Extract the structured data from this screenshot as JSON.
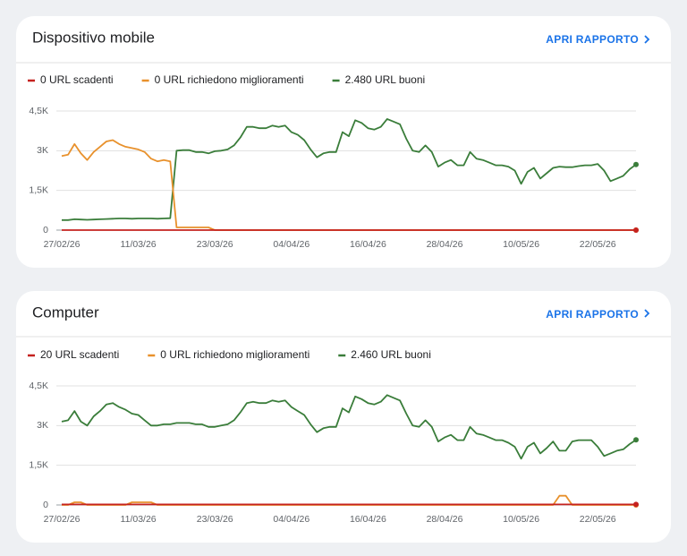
{
  "chart_data": [
    {
      "type": "line",
      "title": "Dispositivo mobile",
      "action": "APRI RAPPORTO",
      "categories": [
        "27/02/26",
        null,
        null,
        null,
        null,
        null,
        null,
        null,
        null,
        null,
        null,
        null,
        "11/03/26",
        null,
        null,
        null,
        null,
        null,
        null,
        null,
        null,
        null,
        null,
        null,
        "23/03/26",
        null,
        null,
        null,
        null,
        null,
        null,
        null,
        null,
        null,
        null,
        null,
        "04/04/26",
        null,
        null,
        null,
        null,
        null,
        null,
        null,
        null,
        null,
        null,
        null,
        "16/04/26",
        null,
        null,
        null,
        null,
        null,
        null,
        null,
        null,
        null,
        null,
        null,
        "28/04/26",
        null,
        null,
        null,
        null,
        null,
        null,
        null,
        null,
        null,
        null,
        null,
        "10/05/26",
        null,
        null,
        null,
        null,
        null,
        null,
        null,
        null,
        null,
        null,
        null,
        "22/05/26",
        null,
        null,
        null,
        null,
        null,
        null
      ],
      "series": [
        {
          "name": "0 URL scadenti",
          "color": "#c5221f",
          "values": [
            0,
            0,
            0,
            0,
            0,
            0,
            0,
            0,
            0,
            0,
            0,
            0,
            0,
            0,
            0,
            0,
            0,
            0,
            0,
            0,
            0,
            0,
            0,
            0,
            0,
            0,
            0,
            0,
            0,
            0,
            0,
            0,
            0,
            0,
            0,
            0,
            0,
            0,
            0,
            0,
            0,
            0,
            0,
            0,
            0,
            0,
            0,
            0,
            0,
            0,
            0,
            0,
            0,
            0,
            0,
            0,
            0,
            0,
            0,
            0,
            0,
            0,
            0,
            0,
            0,
            0,
            0,
            0,
            0,
            0,
            0,
            0,
            0,
            0,
            0,
            0,
            0,
            0,
            0,
            0,
            0,
            0,
            0,
            0,
            0,
            0,
            0,
            0,
            0,
            0,
            0
          ]
        },
        {
          "name": "0 URL richiedono miglioramenti",
          "color": "#e8912c",
          "values": [
            2800,
            2850,
            3250,
            2900,
            2650,
            2950,
            3150,
            3350,
            3400,
            3250,
            3150,
            3100,
            3050,
            2950,
            2700,
            2600,
            2650,
            2600,
            100,
            100,
            100,
            100,
            100,
            100,
            0,
            0,
            0,
            0,
            0,
            0,
            0,
            0,
            0,
            0,
            0,
            0,
            0,
            0,
            0,
            0,
            0,
            0,
            0,
            0,
            0,
            0,
            0,
            0,
            0,
            0,
            0,
            0,
            0,
            0,
            0,
            0,
            0,
            0,
            0,
            0,
            0,
            0,
            0,
            0,
            0,
            0,
            0,
            0,
            0,
            0,
            0,
            0,
            0,
            0,
            0,
            0,
            0,
            0,
            0,
            0,
            0,
            0,
            0,
            0,
            0,
            0,
            0,
            0,
            0,
            0,
            0
          ]
        },
        {
          "name": "2.480 URL buoni",
          "color": "#3a7d3a",
          "values": [
            380,
            380,
            410,
            400,
            390,
            400,
            410,
            420,
            430,
            440,
            440,
            430,
            440,
            440,
            440,
            430,
            440,
            450,
            3000,
            3020,
            3020,
            2950,
            2950,
            2900,
            2980,
            3000,
            3050,
            3200,
            3500,
            3900,
            3900,
            3850,
            3850,
            3950,
            3900,
            3950,
            3700,
            3600,
            3400,
            3050,
            2750,
            2900,
            2950,
            2950,
            3700,
            3550,
            4150,
            4050,
            3850,
            3800,
            3900,
            4200,
            4100,
            4000,
            3450,
            3000,
            2950,
            3200,
            2950,
            2400,
            2550,
            2650,
            2450,
            2450,
            2950,
            2700,
            2650,
            2550,
            2450,
            2450,
            2400,
            2250,
            1750,
            2200,
            2350,
            1950,
            2150,
            2350,
            2400,
            2380,
            2380,
            2420,
            2450,
            2450,
            2500,
            2250,
            1850,
            1950,
            2050,
            2300,
            2480
          ]
        }
      ],
      "ylim": [
        0,
        4500
      ],
      "yticks": [
        0,
        {
          "value": 1500,
          "label": "1,5K"
        },
        {
          "value": 3000,
          "label": "3K"
        },
        {
          "value": 4500,
          "label": "4,5K"
        }
      ],
      "grid": true
    },
    {
      "type": "line",
      "title": "Computer",
      "action": "APRI RAPPORTO",
      "categories": [
        "27/02/26",
        null,
        null,
        null,
        null,
        null,
        null,
        null,
        null,
        null,
        null,
        null,
        "11/03/26",
        null,
        null,
        null,
        null,
        null,
        null,
        null,
        null,
        null,
        null,
        null,
        "23/03/26",
        null,
        null,
        null,
        null,
        null,
        null,
        null,
        null,
        null,
        null,
        null,
        "04/04/26",
        null,
        null,
        null,
        null,
        null,
        null,
        null,
        null,
        null,
        null,
        null,
        "16/04/26",
        null,
        null,
        null,
        null,
        null,
        null,
        null,
        null,
        null,
        null,
        null,
        "28/04/26",
        null,
        null,
        null,
        null,
        null,
        null,
        null,
        null,
        null,
        null,
        null,
        "10/05/26",
        null,
        null,
        null,
        null,
        null,
        null,
        null,
        null,
        null,
        null,
        null,
        "22/05/26",
        null,
        null,
        null,
        null,
        null,
        null
      ],
      "series": [
        {
          "name": "20 URL scadenti",
          "color": "#c5221f",
          "values": [
            20,
            20,
            20,
            20,
            20,
            20,
            20,
            20,
            20,
            20,
            20,
            20,
            20,
            20,
            20,
            20,
            20,
            20,
            20,
            20,
            20,
            20,
            20,
            20,
            20,
            20,
            20,
            20,
            20,
            20,
            20,
            20,
            20,
            20,
            20,
            20,
            20,
            20,
            20,
            20,
            20,
            20,
            20,
            20,
            20,
            20,
            20,
            20,
            20,
            20,
            20,
            20,
            20,
            20,
            20,
            20,
            20,
            20,
            20,
            20,
            20,
            20,
            20,
            20,
            20,
            20,
            20,
            20,
            20,
            20,
            20,
            20,
            20,
            20,
            20,
            20,
            20,
            20,
            20,
            20,
            20,
            20,
            20,
            20,
            20,
            20,
            20,
            20,
            20,
            20,
            20
          ]
        },
        {
          "name": "0 URL richiedono miglioramenti",
          "color": "#e8912c",
          "values": [
            0,
            0,
            100,
            100,
            0,
            0,
            0,
            0,
            0,
            0,
            0,
            100,
            100,
            100,
            100,
            0,
            0,
            0,
            0,
            0,
            0,
            0,
            0,
            0,
            0,
            0,
            0,
            0,
            0,
            0,
            0,
            0,
            0,
            0,
            0,
            0,
            0,
            0,
            0,
            0,
            0,
            0,
            0,
            0,
            0,
            0,
            0,
            0,
            0,
            0,
            0,
            0,
            0,
            0,
            0,
            0,
            0,
            0,
            0,
            0,
            0,
            0,
            0,
            0,
            0,
            0,
            0,
            0,
            0,
            0,
            0,
            0,
            0,
            0,
            0,
            0,
            0,
            0,
            350,
            350,
            0,
            0,
            0,
            0,
            0,
            0,
            0,
            0,
            0,
            0,
            0
          ]
        },
        {
          "name": "2.460 URL buoni",
          "color": "#3a7d3a",
          "values": [
            3150,
            3200,
            3550,
            3150,
            3000,
            3350,
            3550,
            3800,
            3850,
            3700,
            3600,
            3450,
            3400,
            3200,
            3000,
            3000,
            3050,
            3050,
            3100,
            3100,
            3100,
            3050,
            3050,
            2950,
            2950,
            3000,
            3050,
            3200,
            3500,
            3850,
            3900,
            3850,
            3850,
            3950,
            3900,
            3950,
            3700,
            3550,
            3400,
            3050,
            2750,
            2900,
            2950,
            2950,
            3650,
            3500,
            4100,
            4000,
            3850,
            3800,
            3900,
            4150,
            4050,
            3950,
            3450,
            3000,
            2950,
            3200,
            2950,
            2400,
            2550,
            2650,
            2450,
            2450,
            2950,
            2700,
            2650,
            2550,
            2450,
            2450,
            2350,
            2200,
            1750,
            2200,
            2350,
            1950,
            2150,
            2400,
            2050,
            2050,
            2400,
            2450,
            2450,
            2450,
            2200,
            1850,
            1950,
            2050,
            2100,
            2300,
            2460
          ]
        }
      ],
      "ylim": [
        0,
        4500
      ],
      "yticks": [
        0,
        {
          "value": 1500,
          "label": "1,5K"
        },
        {
          "value": 3000,
          "label": "3K"
        },
        {
          "value": 4500,
          "label": "4,5K"
        }
      ],
      "grid": true
    }
  ]
}
